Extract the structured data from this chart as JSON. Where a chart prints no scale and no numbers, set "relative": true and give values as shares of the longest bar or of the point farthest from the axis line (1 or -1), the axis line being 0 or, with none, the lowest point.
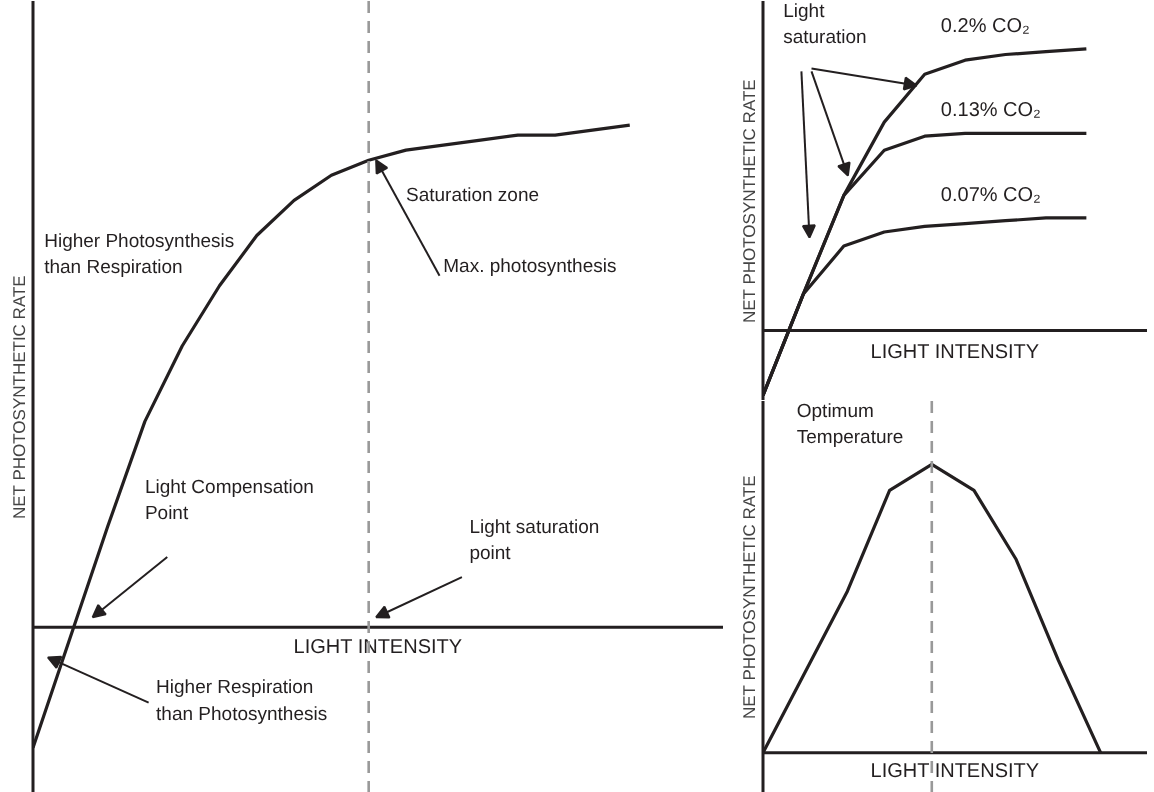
{
  "chart_data": [
    {
      "type": "line",
      "relative": true,
      "xlabel": "LIGHT INTENSITY",
      "ylabel": "NET PHOTOSYNTHETIC RATE",
      "categories": [
        null,
        null,
        null,
        null,
        null,
        null,
        null,
        null,
        null,
        null,
        null,
        null,
        null,
        null,
        null,
        null,
        null
      ],
      "series": [
        {
          "color": "#231f20",
          "values": [
            -0.24,
            -0.02,
            0.2,
            0.41,
            0.56,
            0.68,
            0.78,
            0.85,
            0.9,
            0.93,
            0.95,
            0.96,
            0.97,
            0.98,
            0.98,
            0.99,
            1.0
          ]
        }
      ],
      "annotations": [
        "Higher Photosynthesis\nthan Respiration",
        "Saturation zone",
        "Max. photosynthesis",
        "Light Compensation\nPoint",
        "Light saturation\npoint",
        "Higher Respiration\nthan Photosynthesis"
      ]
    },
    {
      "type": "line",
      "relative": true,
      "xlabel": "LIGHT INTENSITY",
      "ylabel": "NET PHOTOSYNTHETIC RATE",
      "categories": [
        null,
        null,
        null,
        null,
        null,
        null,
        null,
        null,
        null
      ],
      "series": [
        {
          "name": "0.2% CO₂",
          "color": "#231f20",
          "values": [
            -0.23,
            0.13,
            0.48,
            0.74,
            0.91,
            0.96,
            0.98,
            0.99,
            1.0
          ]
        },
        {
          "name": "0.13% CO₂",
          "color": "#231f20",
          "values": [
            -0.23,
            0.13,
            0.48,
            0.64,
            0.69,
            0.7,
            0.7,
            0.7,
            0.7
          ]
        },
        {
          "name": "0.07% CO₂",
          "color": "#231f20",
          "values": [
            -0.23,
            0.13,
            0.3,
            0.35,
            0.37,
            0.38,
            0.39,
            0.4,
            0.4
          ]
        }
      ],
      "annotations": [
        "Light\nsaturation"
      ]
    },
    {
      "type": "line",
      "relative": true,
      "xlabel": "LIGHT INTENSITY",
      "ylabel": "NET PHOTOSYNTHETIC RATE",
      "categories": [
        null,
        null,
        null,
        null,
        null,
        null,
        null,
        null,
        null
      ],
      "series": [
        {
          "color": "#231f20",
          "values": [
            0,
            0.28,
            0.56,
            0.91,
            1.0,
            0.91,
            0.67,
            0.32,
            0
          ]
        }
      ],
      "annotations": [
        "Optimum\nTemperature"
      ]
    }
  ]
}
